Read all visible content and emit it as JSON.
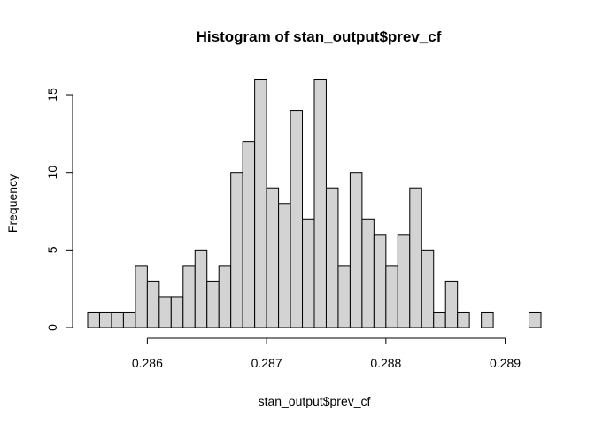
{
  "chart_data": {
    "type": "bar",
    "title": "Histogram of stan_output$prev_cf",
    "xlabel": "stan_output$prev_cf",
    "ylabel": "Frequency",
    "bin_width": 0.0001,
    "bin_starts": [
      0.2855,
      0.2856,
      0.2857,
      0.2858,
      0.2859,
      0.286,
      0.2861,
      0.2862,
      0.2863,
      0.2864,
      0.2865,
      0.2866,
      0.2867,
      0.2868,
      0.2869,
      0.287,
      0.2871,
      0.2872,
      0.2873,
      0.2874,
      0.2875,
      0.2876,
      0.2877,
      0.2878,
      0.2879,
      0.288,
      0.2881,
      0.2882,
      0.2883,
      0.2884,
      0.2885,
      0.2886,
      0.2887,
      0.2888,
      0.2889,
      0.289,
      0.2891,
      0.2892
    ],
    "values": [
      1,
      1,
      1,
      1,
      4,
      3,
      2,
      2,
      4,
      5,
      3,
      4,
      10,
      12,
      16,
      9,
      8,
      14,
      7,
      16,
      9,
      4,
      10,
      7,
      6,
      4,
      6,
      9,
      5,
      1,
      3,
      1,
      0,
      1,
      0,
      0,
      0,
      1
    ],
    "xlim": [
      0.2855,
      0.2893
    ],
    "ylim": [
      0,
      16
    ],
    "x_ticks": [
      0.286,
      0.287,
      0.288,
      0.289
    ],
    "x_tick_labels": [
      "0.286",
      "0.287",
      "0.288",
      "0.289"
    ],
    "y_ticks": [
      0,
      5,
      10,
      15
    ],
    "y_tick_labels": [
      "0",
      "5",
      "10",
      "15"
    ],
    "grid": false,
    "colors": {
      "bar_fill": "#d3d3d3",
      "bar_stroke": "#000000"
    }
  }
}
